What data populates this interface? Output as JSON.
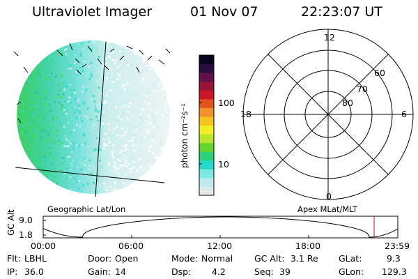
{
  "header": {
    "title": "Ultraviolet Imager",
    "date": "01 Nov 07",
    "time": "22:23:07 UT"
  },
  "colorbar": {
    "unit_label": "photon cm⁻²s⁻¹",
    "ticks": [
      "100",
      "10"
    ],
    "colors": [
      "#dfe9ea",
      "#bfe9ec",
      "#7ce8e4",
      "#29d8cf",
      "#2bd27a",
      "#64d42a",
      "#b8e62a",
      "#f2ee2a",
      "#f6c21c",
      "#f2902a",
      "#e3531e",
      "#c9162a",
      "#9a1338",
      "#62104a",
      "#2a0c40",
      "#0b0620"
    ]
  },
  "polar": {
    "mlt_labels": [
      "12",
      "18",
      "6",
      "0"
    ],
    "lat_labels": [
      "60",
      "70",
      "80"
    ]
  },
  "map_labels": {
    "left": "Geographic Lat/Lon",
    "right": "Apex MLat/MLT"
  },
  "altitude_plot": {
    "axis_title": "GC Alt",
    "y_ticks": [
      "9.0",
      "1.8"
    ],
    "x_ticks": [
      "00:00",
      "06:00",
      "12:00",
      "18:00",
      "23:59"
    ],
    "marker_color": "#c8102e"
  },
  "info": {
    "row1": [
      {
        "key": "Flt:",
        "val": "LBHL"
      },
      {
        "key": "Door:",
        "val": "Open"
      },
      {
        "key": "Mode:",
        "val": "Normal"
      },
      {
        "key": "GC Alt:",
        "val": "3.1 Re"
      },
      {
        "key": "GLat:",
        "val": "9.3"
      }
    ],
    "row2": [
      {
        "key": "IP:",
        "val": "36.0"
      },
      {
        "key": "Gain:",
        "val": "14"
      },
      {
        "key": "Dsp:",
        "val": "4.2"
      },
      {
        "key": "Seq:",
        "val": "39"
      },
      {
        "key": "GLon:",
        "val": "129.3"
      }
    ]
  }
}
